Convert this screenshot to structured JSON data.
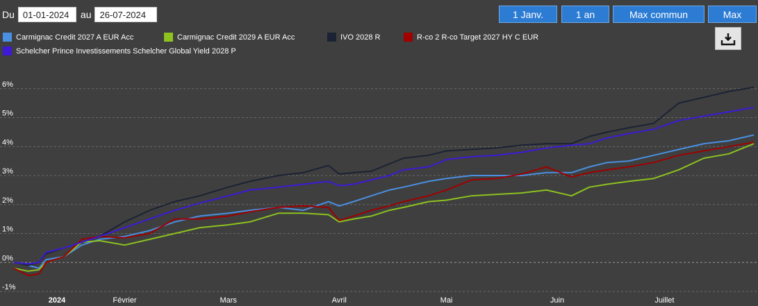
{
  "controls": {
    "from_label": "Du",
    "from_date": "01-01-2024",
    "to_label": "au",
    "to_date": "26-07-2024",
    "buttons": [
      "1 Janv.",
      "1 an",
      "Max commun",
      "Max"
    ]
  },
  "colors": {
    "background": "#3f3f3f",
    "button": "#2d7cd4",
    "grid": "#6a6a6a"
  },
  "chart_data": {
    "type": "line",
    "ylim": [
      -1,
      7
    ],
    "yticks": [
      -1,
      0,
      1,
      2,
      3,
      4,
      5,
      6
    ],
    "ytick_labels": [
      "-1%",
      "0%",
      "1%",
      "2%",
      "3%",
      "4%",
      "5%",
      "6%"
    ],
    "xlim": [
      "2024-01-01",
      "2024-07-26"
    ],
    "xticks": [
      "2024-01-01",
      "2024-02-01",
      "2024-03-01",
      "2024-04-01",
      "2024-05-01",
      "2024-06-01",
      "2024-07-01"
    ],
    "xtick_labels": [
      "2024",
      "Février",
      "Mars",
      "Avril",
      "Mai",
      "Juin",
      "Juillet"
    ],
    "grid": "horizontal dashed",
    "legend_position": "top-left",
    "series": [
      {
        "name": "Carmignac Credit 2027 A EUR Acc",
        "color": "#4a90e2",
        "x": [
          "2024-01-01",
          "2024-01-05",
          "2024-01-08",
          "2024-01-10",
          "2024-01-15",
          "2024-01-20",
          "2024-01-25",
          "2024-02-01",
          "2024-02-08",
          "2024-02-15",
          "2024-02-22",
          "2024-03-01",
          "2024-03-07",
          "2024-03-15",
          "2024-03-22",
          "2024-03-29",
          "2024-04-01",
          "2024-04-05",
          "2024-04-10",
          "2024-04-15",
          "2024-04-19",
          "2024-04-26",
          "2024-05-01",
          "2024-05-08",
          "2024-05-15",
          "2024-05-22",
          "2024-05-29",
          "2024-06-05",
          "2024-06-10",
          "2024-06-15",
          "2024-06-21",
          "2024-06-28",
          "2024-07-05",
          "2024-07-12",
          "2024-07-19",
          "2024-07-26"
        ],
        "y": [
          0.0,
          -0.1,
          -0.2,
          0.1,
          0.2,
          0.6,
          0.8,
          0.9,
          1.1,
          1.4,
          1.6,
          1.7,
          1.8,
          1.9,
          1.8,
          2.1,
          1.95,
          2.1,
          2.3,
          2.5,
          2.6,
          2.8,
          2.9,
          3.0,
          3.0,
          3.0,
          3.1,
          3.1,
          3.3,
          3.45,
          3.5,
          3.7,
          3.9,
          4.1,
          4.2,
          4.4
        ]
      },
      {
        "name": "Carmignac Credit 2029 A EUR Acc",
        "color": "#8dc21f",
        "x": [
          "2024-01-01",
          "2024-01-05",
          "2024-01-08",
          "2024-01-10",
          "2024-01-15",
          "2024-01-20",
          "2024-01-25",
          "2024-02-01",
          "2024-02-08",
          "2024-02-15",
          "2024-02-22",
          "2024-03-01",
          "2024-03-07",
          "2024-03-15",
          "2024-03-22",
          "2024-03-29",
          "2024-04-01",
          "2024-04-05",
          "2024-04-10",
          "2024-04-15",
          "2024-04-19",
          "2024-04-26",
          "2024-05-01",
          "2024-05-08",
          "2024-05-15",
          "2024-05-22",
          "2024-05-29",
          "2024-06-05",
          "2024-06-10",
          "2024-06-15",
          "2024-06-21",
          "2024-06-28",
          "2024-07-05",
          "2024-07-12",
          "2024-07-19",
          "2024-07-26"
        ],
        "y": [
          -0.2,
          -0.3,
          -0.25,
          0.0,
          0.2,
          0.7,
          0.75,
          0.6,
          0.8,
          1.0,
          1.2,
          1.3,
          1.4,
          1.7,
          1.7,
          1.65,
          1.4,
          1.5,
          1.6,
          1.8,
          1.9,
          2.1,
          2.15,
          2.3,
          2.35,
          2.4,
          2.5,
          2.3,
          2.6,
          2.7,
          2.8,
          2.9,
          3.2,
          3.6,
          3.75,
          4.1
        ]
      },
      {
        "name": "IVO 2028 R",
        "color": "#1a2233",
        "x": [
          "2024-01-01",
          "2024-01-05",
          "2024-01-08",
          "2024-01-10",
          "2024-01-15",
          "2024-01-20",
          "2024-01-25",
          "2024-02-01",
          "2024-02-08",
          "2024-02-15",
          "2024-02-22",
          "2024-03-01",
          "2024-03-07",
          "2024-03-15",
          "2024-03-22",
          "2024-03-29",
          "2024-04-01",
          "2024-04-05",
          "2024-04-10",
          "2024-04-15",
          "2024-04-19",
          "2024-04-26",
          "2024-05-01",
          "2024-05-08",
          "2024-05-15",
          "2024-05-22",
          "2024-05-29",
          "2024-06-05",
          "2024-06-10",
          "2024-06-15",
          "2024-06-21",
          "2024-06-28",
          "2024-07-05",
          "2024-07-12",
          "2024-07-19",
          "2024-07-26"
        ],
        "y": [
          0.0,
          -0.1,
          0.0,
          0.3,
          0.5,
          0.7,
          0.9,
          1.4,
          1.8,
          2.1,
          2.3,
          2.6,
          2.8,
          3.0,
          3.1,
          3.35,
          3.05,
          3.1,
          3.15,
          3.4,
          3.6,
          3.7,
          3.85,
          3.9,
          3.95,
          4.05,
          4.1,
          4.1,
          4.35,
          4.5,
          4.65,
          4.8,
          5.5,
          5.7,
          5.9,
          6.05
        ]
      },
      {
        "name": "R-co 2 R-co Target 2027 HY C EUR",
        "color": "#a00000",
        "x": [
          "2024-01-01",
          "2024-01-05",
          "2024-01-08",
          "2024-01-10",
          "2024-01-15",
          "2024-01-20",
          "2024-01-25",
          "2024-02-01",
          "2024-02-08",
          "2024-02-15",
          "2024-02-22",
          "2024-03-01",
          "2024-03-07",
          "2024-03-15",
          "2024-03-22",
          "2024-03-29",
          "2024-04-01",
          "2024-04-05",
          "2024-04-10",
          "2024-04-15",
          "2024-04-19",
          "2024-04-26",
          "2024-05-01",
          "2024-05-08",
          "2024-05-15",
          "2024-05-22",
          "2024-05-29",
          "2024-06-05",
          "2024-06-10",
          "2024-06-15",
          "2024-06-21",
          "2024-06-28",
          "2024-07-05",
          "2024-07-12",
          "2024-07-19",
          "2024-07-26"
        ],
        "y": [
          -0.2,
          -0.45,
          -0.4,
          0.0,
          0.2,
          0.8,
          0.9,
          0.85,
          1.0,
          1.5,
          1.5,
          1.6,
          1.75,
          1.9,
          1.95,
          1.9,
          1.45,
          1.6,
          1.8,
          1.95,
          2.1,
          2.3,
          2.5,
          2.85,
          2.9,
          3.05,
          3.3,
          2.95,
          3.1,
          3.2,
          3.3,
          3.45,
          3.7,
          3.85,
          4.0,
          4.15
        ]
      },
      {
        "name": "Schelcher Prince Investissements Schelcher Global Yield 2028 P",
        "color": "#3d1ad6",
        "x": [
          "2024-01-01",
          "2024-01-05",
          "2024-01-08",
          "2024-01-10",
          "2024-01-15",
          "2024-01-20",
          "2024-01-25",
          "2024-02-01",
          "2024-02-08",
          "2024-02-15",
          "2024-02-22",
          "2024-03-01",
          "2024-03-07",
          "2024-03-15",
          "2024-03-22",
          "2024-03-29",
          "2024-04-01",
          "2024-04-05",
          "2024-04-10",
          "2024-04-15",
          "2024-04-19",
          "2024-04-26",
          "2024-05-01",
          "2024-05-08",
          "2024-05-15",
          "2024-05-22",
          "2024-05-29",
          "2024-06-05",
          "2024-06-10",
          "2024-06-15",
          "2024-06-21",
          "2024-06-28",
          "2024-07-05",
          "2024-07-12",
          "2024-07-19",
          "2024-07-26"
        ],
        "y": [
          0.0,
          -0.05,
          0.0,
          0.35,
          0.5,
          0.7,
          0.9,
          1.2,
          1.5,
          1.8,
          2.05,
          2.3,
          2.5,
          2.6,
          2.7,
          2.8,
          2.65,
          2.7,
          2.85,
          3.0,
          3.2,
          3.3,
          3.55,
          3.65,
          3.7,
          3.8,
          3.95,
          4.05,
          4.1,
          4.3,
          4.45,
          4.6,
          4.9,
          5.05,
          5.2,
          5.35
        ]
      }
    ]
  }
}
